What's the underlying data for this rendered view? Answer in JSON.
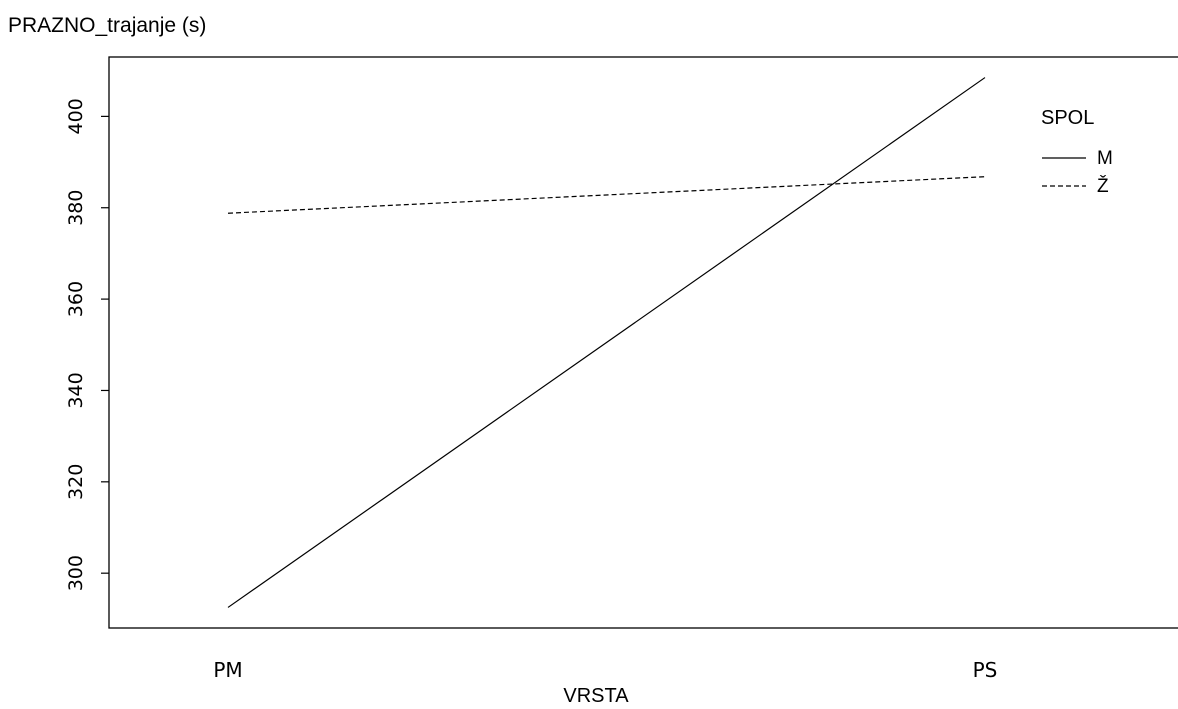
{
  "chart_data": {
    "type": "line",
    "title": "",
    "ylabel": "PRAZNO_trajanje (s)",
    "xlabel": "VRSTA",
    "categories": [
      "PM",
      "PS"
    ],
    "ylim": [
      288,
      413
    ],
    "yticks": [
      300,
      320,
      340,
      360,
      380,
      400
    ],
    "grid": false,
    "legend": {
      "title": "SPOL",
      "placement": "top-right"
    },
    "series": [
      {
        "name": "M",
        "values": [
          292.5,
          408.5
        ],
        "line_style": "solid",
        "color": "#000000"
      },
      {
        "name": "Ž",
        "values": [
          378.8,
          386.8
        ],
        "line_style": "dashed",
        "color": "#000000"
      }
    ]
  }
}
